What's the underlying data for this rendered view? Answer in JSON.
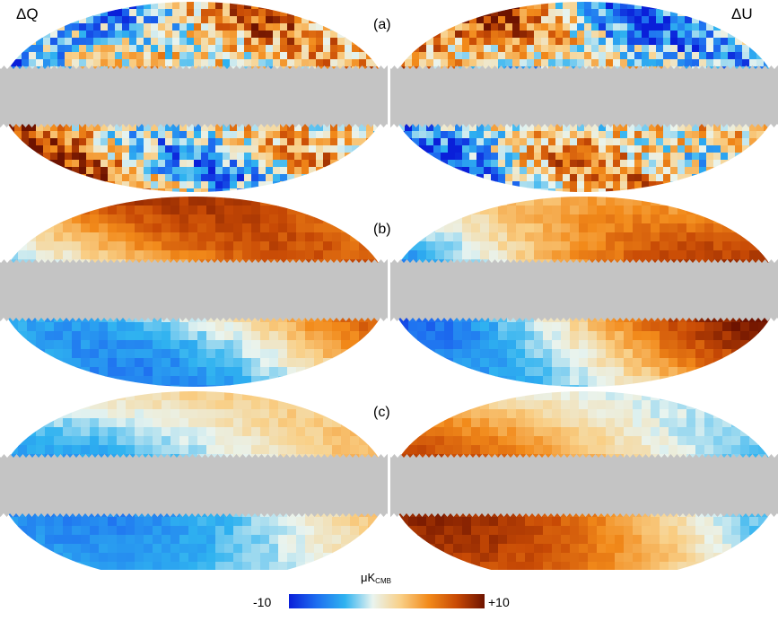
{
  "columns": [
    "ΔQ",
    "ΔU"
  ],
  "rows": [
    {
      "label": "(a)",
      "maps": [
        {
          "name": "map-a-dq",
          "seed": 11,
          "scale": 7,
          "noise": 0.55
        },
        {
          "name": "map-a-du",
          "seed": 23,
          "scale": 7,
          "noise": 0.55
        }
      ]
    },
    {
      "label": "(b)",
      "maps": [
        {
          "name": "map-b-dq",
          "seed": 37,
          "scale": 2.5,
          "noise": 0.1
        },
        {
          "name": "map-b-du",
          "seed": 51,
          "scale": 2.5,
          "noise": 0.1
        }
      ]
    },
    {
      "label": "(c)",
      "maps": [
        {
          "name": "map-c-dq",
          "seed": 67,
          "scale": 2.2,
          "noise": 0.08
        },
        {
          "name": "map-c-du",
          "seed": 79,
          "scale": 2.2,
          "noise": 0.08
        }
      ]
    }
  ],
  "colorbar": {
    "unit": "μK",
    "unit_sub": "CMB",
    "min_label": "-10",
    "max_label": "+10",
    "stops": [
      "#0a1fd9",
      "#1e6ff0",
      "#2fb2f0",
      "#e9f4ef",
      "#f9cf86",
      "#f28a1a",
      "#c84a05",
      "#6e1300"
    ]
  },
  "mask_color": "#c4c4c4"
}
